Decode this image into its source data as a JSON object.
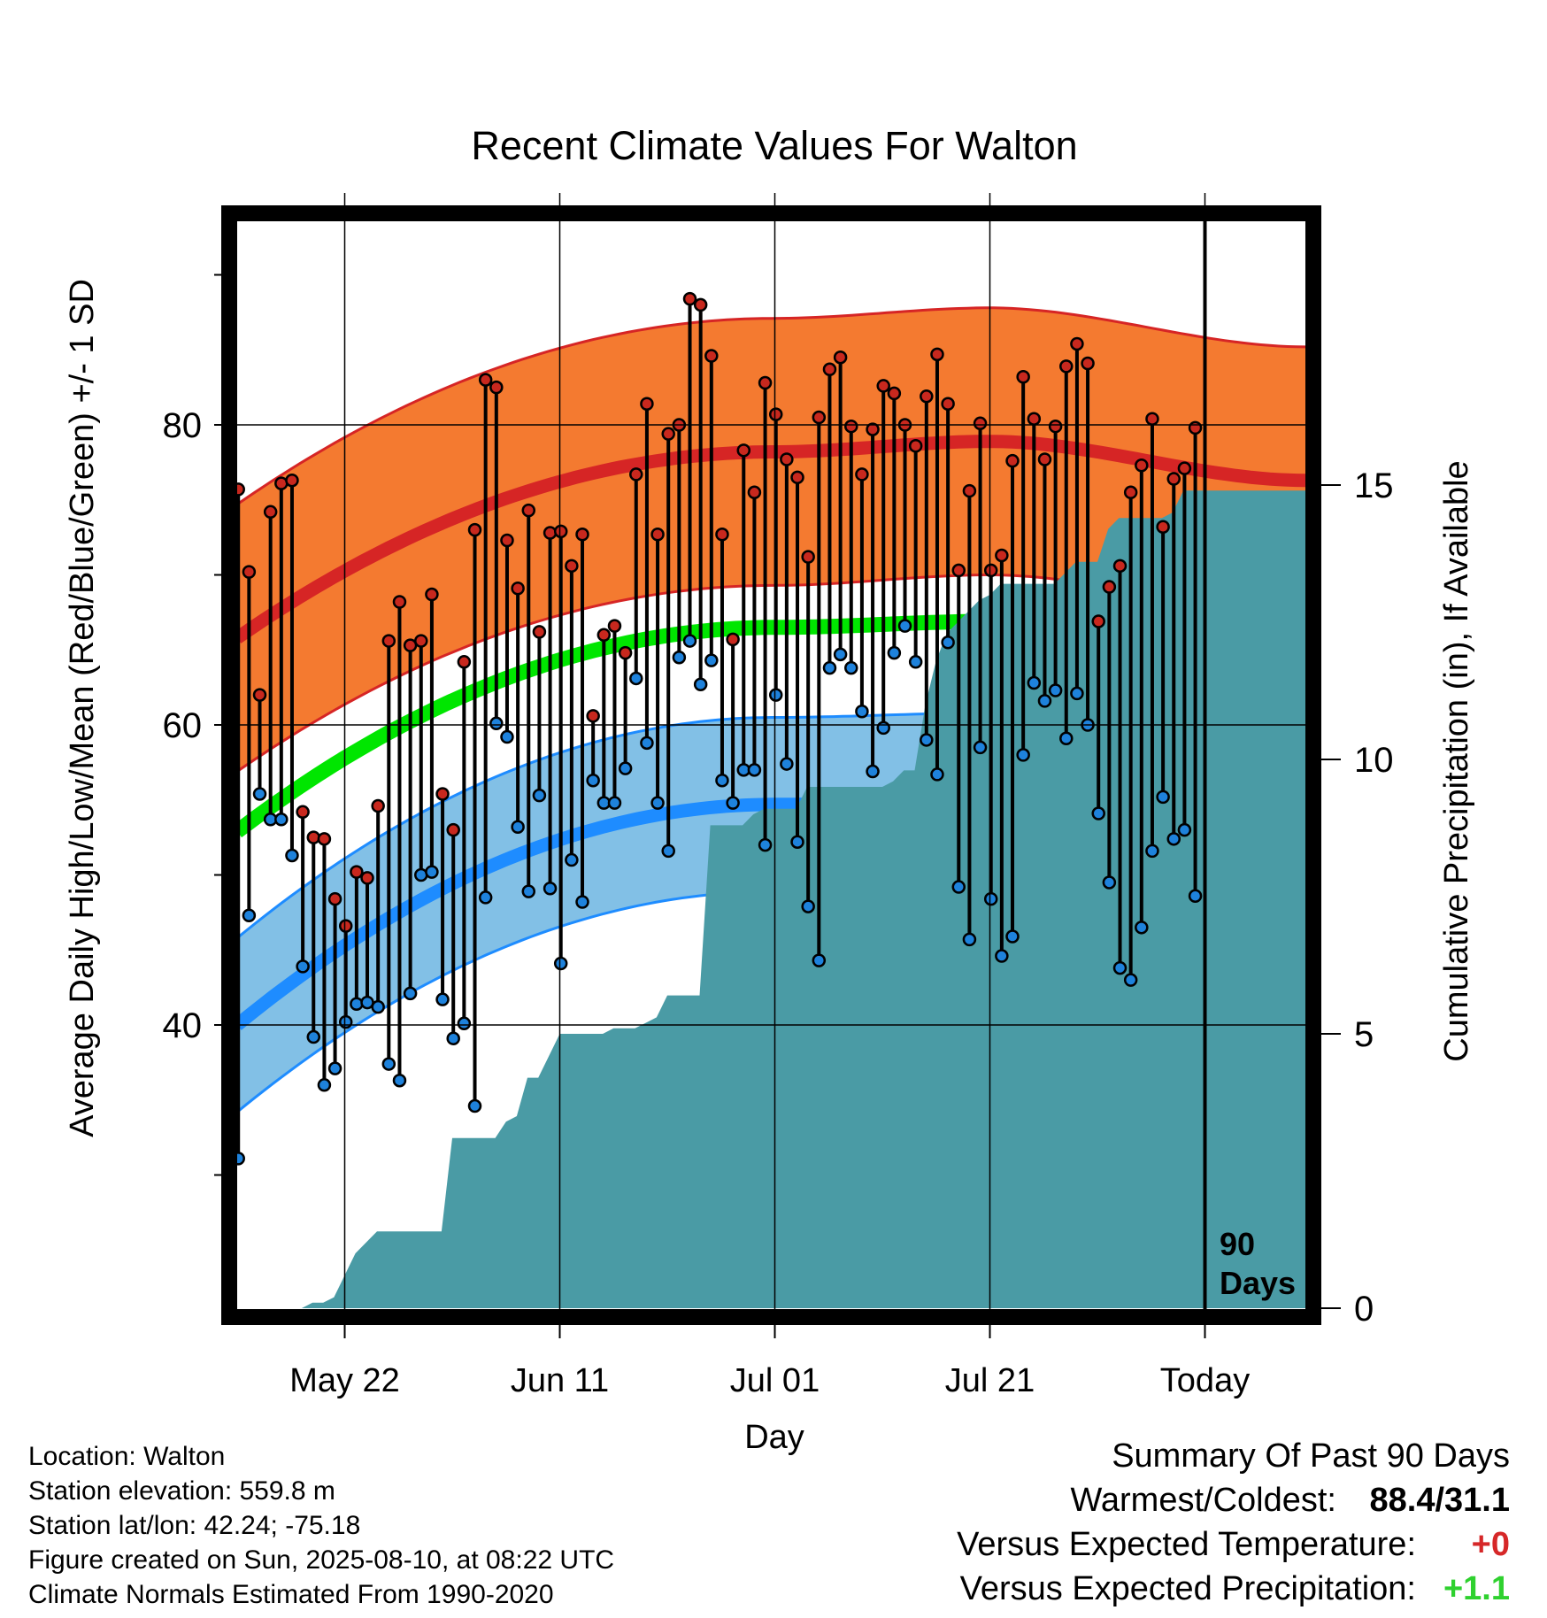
{
  "chart_data": {
    "type": "line",
    "title": "Recent Climate Values For Walton",
    "xlabel": "Day",
    "ylabel": "Average Daily High/Low/Mean (Red/Blue/Green) +/- 1 SD",
    "y2label": "Cumulative Precipitation (in), If Available",
    "x_tick_labels": [
      "May 22",
      "Jun 11",
      "Jul 01",
      "Jul 21",
      "Today"
    ],
    "x_tick_days": [
      10,
      30,
      50,
      70,
      90
    ],
    "ylim": [
      22,
      95
    ],
    "y_ticks": [
      40,
      60,
      80
    ],
    "y2lim": [
      0,
      20.6
    ],
    "y2_ticks": [
      0,
      5,
      10,
      15
    ],
    "days_label": "90 Days",
    "daily_high": [
      75.7,
      70.2,
      62.0,
      74.2,
      76.1,
      76.3,
      54.2,
      52.5,
      52.4,
      48.4,
      46.6,
      50.2,
      49.8,
      54.6,
      65.6,
      68.2,
      65.3,
      65.6,
      68.7,
      55.4,
      53.0,
      64.2,
      73.0,
      83.0,
      82.5,
      72.3,
      69.1,
      74.3,
      66.2,
      72.8,
      72.9,
      70.6,
      72.7,
      60.6,
      66.0,
      66.6,
      64.8,
      76.7,
      81.4,
      72.7,
      79.4,
      80.0,
      88.4,
      88.0,
      84.6,
      72.7,
      65.7,
      78.3,
      75.5,
      82.8,
      80.7,
      77.7,
      76.5,
      71.2,
      80.5,
      83.7,
      84.5,
      79.9,
      76.7,
      79.7,
      82.6,
      82.1,
      80.0,
      78.6,
      81.9,
      84.7,
      81.4,
      70.3,
      75.6,
      80.1,
      70.3,
      71.3,
      77.6,
      83.2,
      80.4,
      77.7,
      79.9,
      83.9,
      85.4,
      84.1,
      66.9,
      69.2,
      70.6,
      75.5,
      77.3,
      80.4,
      73.2,
      76.4,
      77.1,
      79.8
    ],
    "daily_low": [
      31.1,
      47.3,
      55.4,
      53.7,
      53.7,
      51.3,
      43.9,
      39.2,
      36.0,
      37.1,
      40.2,
      41.4,
      41.5,
      41.2,
      37.4,
      36.3,
      42.1,
      50.0,
      50.2,
      41.7,
      39.1,
      40.1,
      34.6,
      48.5,
      60.1,
      59.2,
      53.2,
      48.9,
      55.3,
      49.1,
      44.1,
      51.0,
      48.2,
      56.3,
      54.8,
      54.8,
      57.1,
      63.1,
      58.8,
      54.8,
      51.6,
      64.5,
      65.6,
      62.7,
      64.3,
      56.3,
      54.8,
      57.0,
      57.0,
      52.0,
      62.0,
      57.4,
      52.2,
      47.9,
      44.3,
      63.8,
      64.7,
      63.8,
      60.9,
      56.9,
      59.8,
      64.8,
      66.6,
      64.2,
      59.0,
      56.7,
      65.5,
      49.2,
      45.7,
      58.5,
      48.4,
      44.6,
      45.9,
      58.0,
      62.8,
      61.6,
      62.3,
      59.1,
      62.1,
      60.0,
      54.1,
      49.5,
      43.8,
      43.0,
      46.5,
      51.6,
      55.2,
      52.4,
      53.0,
      48.6
    ],
    "normal_high": [
      65.8,
      78.2,
      78.9,
      76.3
    ],
    "normal_high_sd": 8.9,
    "normal_low": [
      40.0,
      54.7,
      55.0,
      52.9
    ],
    "normal_low_sd": 5.8,
    "normal_mean": [
      52.9,
      66.5,
      66.9,
      64.7
    ],
    "precip_cumulative": [
      0.0,
      0.0,
      0.0,
      0.0,
      0.0,
      0.0,
      0.0,
      0.1,
      0.1,
      0.2,
      0.6,
      1.0,
      1.2,
      1.4,
      1.4,
      1.4,
      1.4,
      1.4,
      1.4,
      1.4,
      3.1,
      3.1,
      3.1,
      3.1,
      3.1,
      3.4,
      3.5,
      4.2,
      4.2,
      4.6,
      5.0,
      5.0,
      5.0,
      5.0,
      5.0,
      5.1,
      5.1,
      5.1,
      5.2,
      5.3,
      5.7,
      5.7,
      5.7,
      5.7,
      8.8,
      8.8,
      8.8,
      8.8,
      9.0,
      9.1,
      9.1,
      9.1,
      9.1,
      9.5,
      9.5,
      9.5,
      9.5,
      9.5,
      9.5,
      9.5,
      9.5,
      9.6,
      9.8,
      9.8,
      11.0,
      11.8,
      12.3,
      12.5,
      12.7,
      12.9,
      13.0,
      13.2,
      13.2,
      13.2,
      13.2,
      13.2,
      13.2,
      13.4,
      13.6,
      13.6,
      13.6,
      14.2,
      14.4,
      14.4,
      14.4,
      14.4,
      14.4,
      14.5,
      14.9,
      14.9,
      14.9,
      14.9
    ]
  },
  "info": {
    "location": "Location: Walton",
    "elevation": "Station elevation: 559.8 m",
    "latlon": "Station lat/lon: 42.24; -75.18",
    "created": "Figure created on Sun, 2025-08-10, at 08:22 UTC",
    "normals": "Climate Normals Estimated From 1990-2020"
  },
  "summary": {
    "title": "Summary Of Past 90 Days",
    "warm_cold_label": "Warmest/Coldest:",
    "warm_cold_value": "88.4/31.1",
    "temp_label": "Versus Expected Temperature:",
    "temp_value": "+0",
    "precip_label": "Versus Expected Precipitation:",
    "precip_value": "+1.1"
  },
  "colors": {
    "high_band": "#f47a30",
    "high_line": "#d62525",
    "low_band": "#82c0e6",
    "low_line": "#1e8cff",
    "mean_line": "#00e600",
    "precip": "#4a9ba5",
    "high_dot": "#c8281e",
    "low_dot": "#1e82dc"
  }
}
